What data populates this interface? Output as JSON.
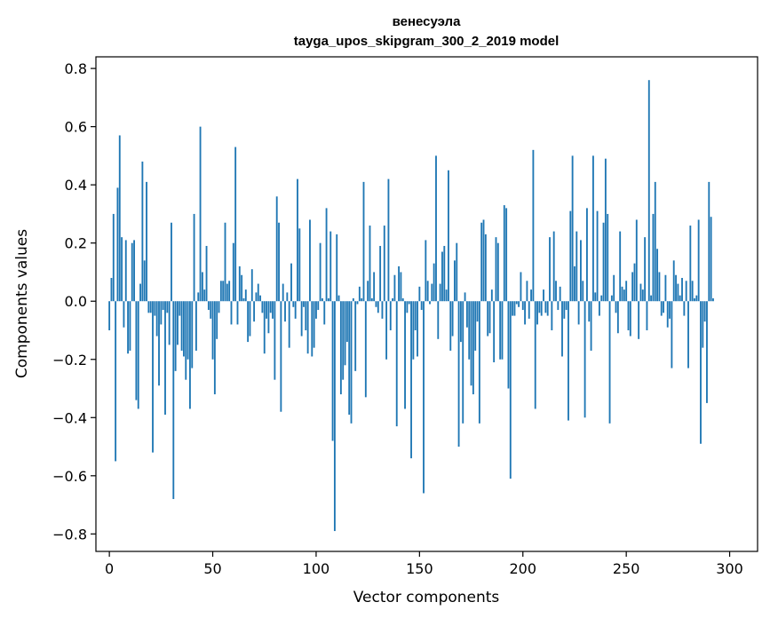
{
  "chart_data": {
    "type": "bar",
    "title": "венесуэла",
    "subtitle": "tayga_upos_skipgram_300_2_2019 model",
    "xlabel": "Vector components",
    "ylabel": "Components values",
    "xlim": [
      -6.5,
      313.5
    ],
    "ylim": [
      -0.86,
      0.84
    ],
    "xticks": [
      0,
      50,
      100,
      150,
      200,
      250,
      300
    ],
    "xtick_labels": [
      "0",
      "50",
      "100",
      "150",
      "200",
      "250",
      "300"
    ],
    "yticks": [
      -0.8,
      -0.6,
      -0.4,
      -0.2,
      0.0,
      0.2,
      0.4,
      0.6,
      0.8
    ],
    "ytick_labels": [
      "−0.8",
      "−0.6",
      "−0.4",
      "−0.2",
      "0.0",
      "0.2",
      "0.4",
      "0.6",
      "0.8"
    ],
    "bar_color": "#1f77b4",
    "values": [
      -0.1,
      0.08,
      0.3,
      -0.55,
      0.39,
      0.57,
      0.22,
      -0.09,
      0.21,
      -0.18,
      -0.17,
      0.2,
      0.21,
      -0.34,
      -0.37,
      0.06,
      0.48,
      0.14,
      0.41,
      -0.04,
      -0.04,
      -0.52,
      -0.05,
      -0.12,
      -0.29,
      -0.08,
      -0.03,
      -0.39,
      -0.04,
      -0.15,
      0.27,
      -0.68,
      -0.24,
      -0.15,
      -0.05,
      -0.17,
      -0.19,
      -0.27,
      -0.2,
      -0.37,
      -0.23,
      0.3,
      -0.17,
      0.03,
      0.6,
      0.1,
      0.04,
      0.19,
      -0.03,
      -0.06,
      -0.2,
      -0.32,
      -0.13,
      -0.04,
      0.07,
      0.07,
      0.27,
      0.06,
      0.07,
      -0.08,
      0.2,
      0.53,
      -0.08,
      0.12,
      0.09,
      0.01,
      0.04,
      -0.14,
      -0.12,
      0.11,
      -0.07,
      0.03,
      0.06,
      0.02,
      -0.04,
      -0.18,
      -0.06,
      -0.11,
      -0.04,
      -0.06,
      -0.27,
      0.36,
      0.27,
      -0.38,
      0.06,
      -0.07,
      0.03,
      -0.16,
      0.13,
      -0.02,
      -0.06,
      0.42,
      0.25,
      -0.12,
      -0.02,
      -0.1,
      -0.18,
      0.28,
      -0.19,
      -0.16,
      -0.06,
      -0.03,
      0.2,
      0.01,
      -0.08,
      0.32,
      0.01,
      0.24,
      -0.48,
      -0.79,
      0.23,
      0.02,
      -0.32,
      -0.27,
      -0.22,
      -0.14,
      -0.39,
      -0.42,
      0.01,
      -0.24,
      -0.01,
      0.05,
      0.01,
      0.41,
      -0.33,
      0.07,
      0.26,
      0.01,
      0.1,
      -0.02,
      -0.04,
      0.19,
      -0.06,
      0.26,
      -0.2,
      0.42,
      -0.1,
      0.01,
      0.09,
      -0.43,
      0.12,
      0.1,
      0.01,
      -0.37,
      -0.04,
      -0.01,
      -0.54,
      -0.2,
      -0.1,
      -0.19,
      0.05,
      -0.03,
      -0.66,
      0.21,
      0.07,
      -0.01,
      0.06,
      0.13,
      0.5,
      -0.13,
      0.06,
      0.17,
      0.19,
      0.04,
      0.45,
      -0.17,
      -0.12,
      0.14,
      0.2,
      -0.5,
      -0.14,
      -0.42,
      0.03,
      -0.09,
      -0.2,
      -0.29,
      -0.32,
      -0.17,
      -0.07,
      -0.42,
      0.27,
      0.28,
      0.23,
      -0.12,
      -0.11,
      0.04,
      -0.21,
      0.22,
      0.2,
      -0.2,
      -0.2,
      0.33,
      0.32,
      -0.3,
      -0.61,
      -0.05,
      -0.05,
      -0.01,
      -0.02,
      0.1,
      -0.03,
      -0.08,
      0.07,
      -0.06,
      0.04,
      0.52,
      -0.37,
      -0.08,
      -0.04,
      -0.05,
      0.04,
      -0.04,
      -0.05,
      0.22,
      -0.1,
      0.24,
      0.07,
      -0.03,
      0.05,
      -0.19,
      -0.06,
      -0.03,
      -0.41,
      0.31,
      0.5,
      0.12,
      0.24,
      -0.08,
      0.21,
      0.07,
      -0.4,
      0.32,
      -0.07,
      -0.17,
      0.5,
      0.03,
      0.31,
      -0.05,
      0.02,
      0.27,
      0.49,
      0.3,
      -0.42,
      0.02,
      0.09,
      -0.04,
      -0.11,
      0.24,
      0.05,
      0.04,
      0.07,
      -0.1,
      -0.12,
      0.1,
      0.13,
      0.28,
      -0.13,
      0.06,
      0.04,
      0.22,
      -0.1,
      0.76,
      0.02,
      0.3,
      0.41,
      0.18,
      0.1,
      -0.05,
      -0.04,
      0.09,
      -0.09,
      -0.06,
      -0.23,
      0.14,
      0.09,
      0.06,
      0.02,
      0.08,
      -0.05,
      0.07,
      -0.23,
      0.26,
      0.07,
      0.01,
      0.02,
      0.28,
      -0.49,
      -0.16,
      -0.07,
      -0.35,
      0.41,
      0.29,
      0.01
    ]
  }
}
